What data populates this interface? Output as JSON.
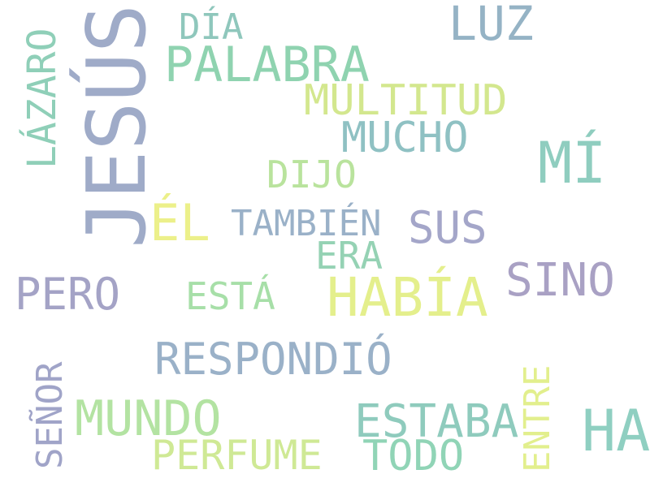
{
  "word_cloud": {
    "words": [
      {
        "text": "JESÚS",
        "color": "#9fabc8"
      },
      {
        "text": "LÁZARO",
        "color": "#8fcfb8"
      },
      {
        "text": "DÍA",
        "color": "#8fc7bc"
      },
      {
        "text": "PALABRA",
        "color": "#8fd3b0"
      },
      {
        "text": "LUZ",
        "color": "#95b3c5"
      },
      {
        "text": "MULTITUD",
        "color": "#d3e78e"
      },
      {
        "text": "MUCHO",
        "color": "#8fc1c3"
      },
      {
        "text": "MÍ",
        "color": "#8fcdbf"
      },
      {
        "text": "DIJO",
        "color": "#b9e39d"
      },
      {
        "text": "ÉL",
        "color": "#ecf08a"
      },
      {
        "text": "TAMBIÉN",
        "color": "#9ab1c8"
      },
      {
        "text": "SUS",
        "color": "#a4a6c9"
      },
      {
        "text": "ERA",
        "color": "#95d2b4"
      },
      {
        "text": "PERO",
        "color": "#a4a3c6"
      },
      {
        "text": "ESTÁ",
        "color": "#a7dfa8"
      },
      {
        "text": "HABÍA",
        "color": "#e4ef8c"
      },
      {
        "text": "SINO",
        "color": "#a9a1c4"
      },
      {
        "text": "SEÑOR",
        "color": "#a0a4c8"
      },
      {
        "text": "RESPONDIÓ",
        "color": "#9ab1c8"
      },
      {
        "text": "ENTRE",
        "color": "#e2ef8d"
      },
      {
        "text": "MUNDO",
        "color": "#b3e3a2"
      },
      {
        "text": "ESTABA",
        "color": "#8fcbbd"
      },
      {
        "text": "HA",
        "color": "#8fcfc1"
      },
      {
        "text": "PERFUME",
        "color": "#cfe995"
      },
      {
        "text": "TODO",
        "color": "#90d4b6"
      }
    ]
  }
}
